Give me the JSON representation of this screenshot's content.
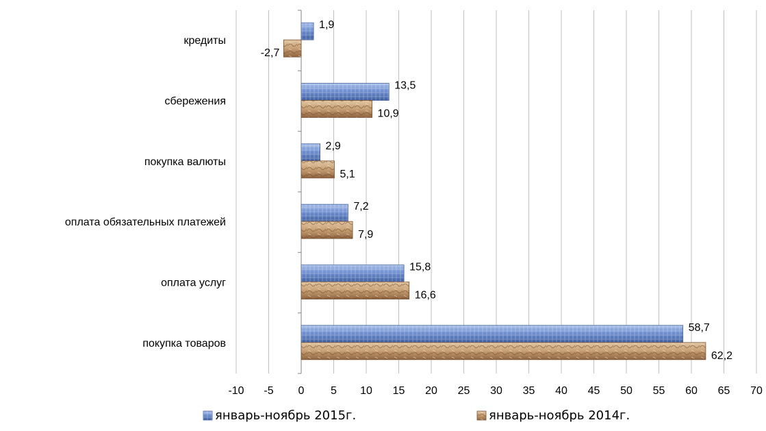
{
  "chart_data": {
    "type": "bar",
    "orientation": "horizontal",
    "title": "",
    "xlabel": "",
    "ylabel": "",
    "categories": [
      "кредиты",
      "сбережения",
      "покупка валюты",
      "оплата обязательных платежей",
      "оплата услуг",
      "покупка товаров"
    ],
    "series": [
      {
        "name": "январь-ноябрь 2015г.",
        "values": [
          1.9,
          13.5,
          2.9,
          7.2,
          15.8,
          58.7
        ],
        "labels": [
          "1,9",
          "13,5",
          "2,9",
          "7,2",
          "15,8",
          "58,7"
        ],
        "color": "#5b7fc4",
        "pattern": "blue-texture-icon"
      },
      {
        "name": "январь-ноябрь 2014г.",
        "values": [
          -2.7,
          10.9,
          5.1,
          7.9,
          16.6,
          62.2
        ],
        "labels": [
          "-2,7",
          "10,9",
          "5,1",
          "7,9",
          "16,6",
          "62,2"
        ],
        "color": "#b8895a",
        "pattern": "tan-texture-icon"
      }
    ],
    "xlim": [
      -10,
      70
    ],
    "x_ticks": [
      -10,
      -5,
      0,
      5,
      10,
      15,
      20,
      25,
      30,
      35,
      40,
      45,
      50,
      55,
      60,
      65,
      70
    ],
    "x_tick_labels": [
      "-10",
      "-5",
      "0",
      "5",
      "10",
      "15",
      "20",
      "25",
      "30",
      "35",
      "40",
      "45",
      "50",
      "55",
      "60",
      "65",
      "70"
    ],
    "grid": "vertical",
    "legend_position": "bottom"
  }
}
